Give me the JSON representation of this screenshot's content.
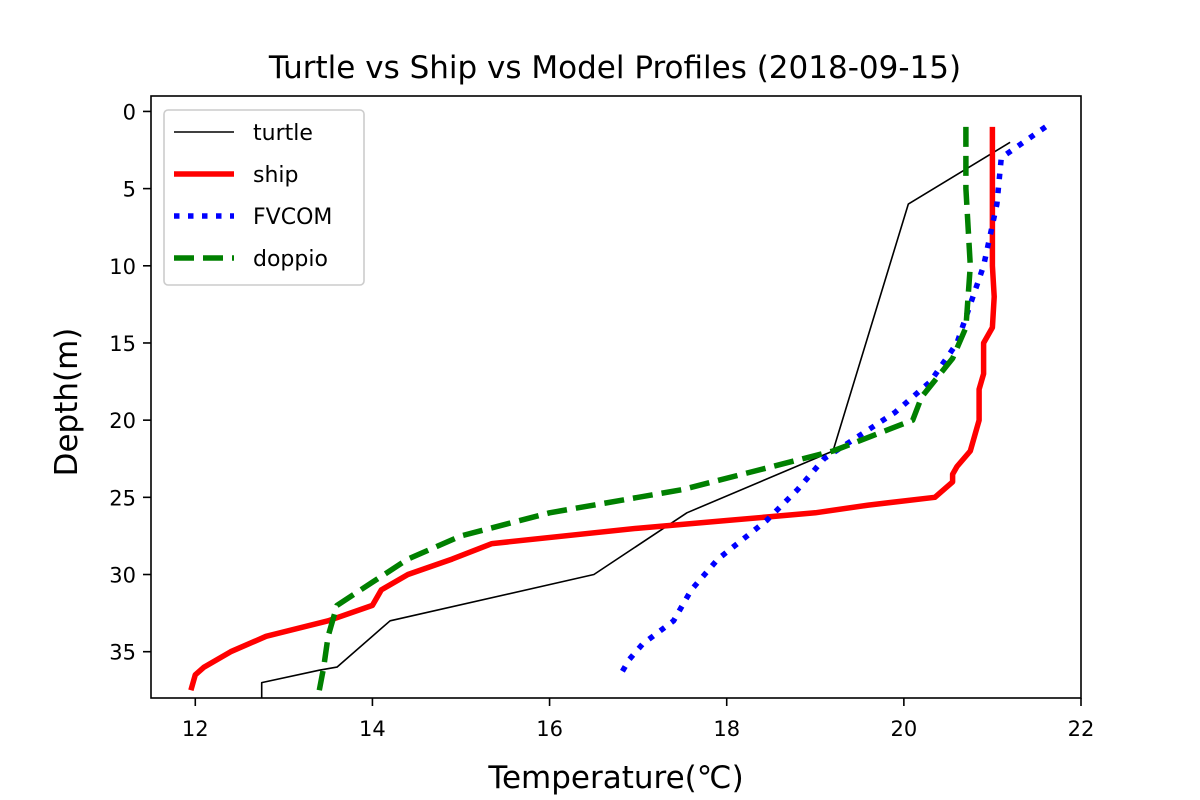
{
  "chart_data": {
    "type": "line",
    "title": "Turtle vs Ship vs Model Profiles (2018-09-15)",
    "xlabel": "Temperature(℃)",
    "ylabel": "Depth(m)",
    "xlim": [
      11.5,
      22
    ],
    "ylim": [
      38,
      -1
    ],
    "y_inverted": true,
    "xticks": [
      12,
      14,
      16,
      18,
      20,
      22
    ],
    "yticks": [
      0,
      5,
      10,
      15,
      20,
      25,
      30,
      35
    ],
    "grid": false,
    "legend_position": "top-left",
    "series": [
      {
        "name": "turtle",
        "color": "#000000",
        "style": "solid",
        "x": [
          21.2,
          20.05,
          19.2,
          17.55,
          16.5,
          14.2,
          13.6,
          13.4,
          12.75,
          12.75
        ],
        "y": [
          2,
          6,
          22,
          26,
          30,
          33,
          36,
          36.2,
          37,
          38
        ]
      },
      {
        "name": "ship",
        "color": "#ff0000",
        "style": "solid",
        "x": [
          21.0,
          21.0,
          21.0,
          21.02,
          21.0,
          20.9,
          20.9,
          20.85,
          20.85,
          20.8,
          20.75,
          20.6,
          20.55,
          20.55,
          20.35,
          19.6,
          19.0,
          18.0,
          17.0,
          15.35,
          14.9,
          14.4,
          14.1,
          14.0,
          13.5,
          12.8,
          12.4,
          12.1,
          12.0,
          11.95
        ],
        "y": [
          1,
          5,
          10,
          12,
          14,
          15,
          17,
          18,
          20,
          21,
          22,
          23,
          23.5,
          24,
          25,
          25.5,
          26,
          26.5,
          27,
          28,
          29,
          30,
          31,
          32,
          33,
          34,
          35,
          36,
          36.5,
          37.5
        ]
      },
      {
        "name": "FVCOM",
        "color": "#0000ff",
        "style": "dotted",
        "x": [
          21.6,
          21.1,
          21.05,
          20.9,
          20.6,
          20.3,
          19.9,
          19.1,
          18.8,
          18.45,
          17.9,
          17.6,
          17.4,
          17.05,
          16.9,
          16.8
        ],
        "y": [
          1,
          3,
          6,
          10,
          15,
          17.5,
          19.5,
          22.5,
          24.5,
          26.5,
          29,
          31,
          33,
          34.5,
          35.5,
          36.5
        ]
      },
      {
        "name": "doppio",
        "color": "#008000",
        "style": "dashed",
        "x": [
          20.7,
          20.7,
          20.75,
          20.7,
          20.55,
          20.2,
          20.1,
          19.2,
          17.5,
          16.0,
          15.0,
          14.4,
          14.0,
          13.6,
          13.5,
          13.45,
          13.4
        ],
        "y": [
          1,
          5,
          10,
          14,
          16,
          18.5,
          20,
          22,
          24.5,
          26,
          27.5,
          29,
          30.5,
          32,
          34,
          36,
          37.5
        ]
      }
    ]
  }
}
